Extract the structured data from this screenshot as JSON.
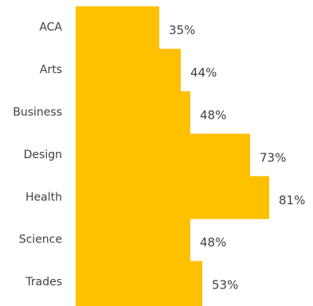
{
  "chart_data": {
    "type": "bar",
    "orientation": "horizontal",
    "categories": [
      "ACA",
      "Arts",
      "Business",
      "Design",
      "Health",
      "Science",
      "Trades"
    ],
    "values": [
      35,
      44,
      48,
      73,
      81,
      48,
      53
    ],
    "value_labels": [
      "35%",
      "44%",
      "48%",
      "73%",
      "81%",
      "48%",
      "53%"
    ],
    "unit": "%",
    "xlim": [
      0,
      100
    ],
    "grid": false,
    "legend": "none",
    "bar_color": "#FFC000",
    "text_color": "#3F3F3F"
  }
}
